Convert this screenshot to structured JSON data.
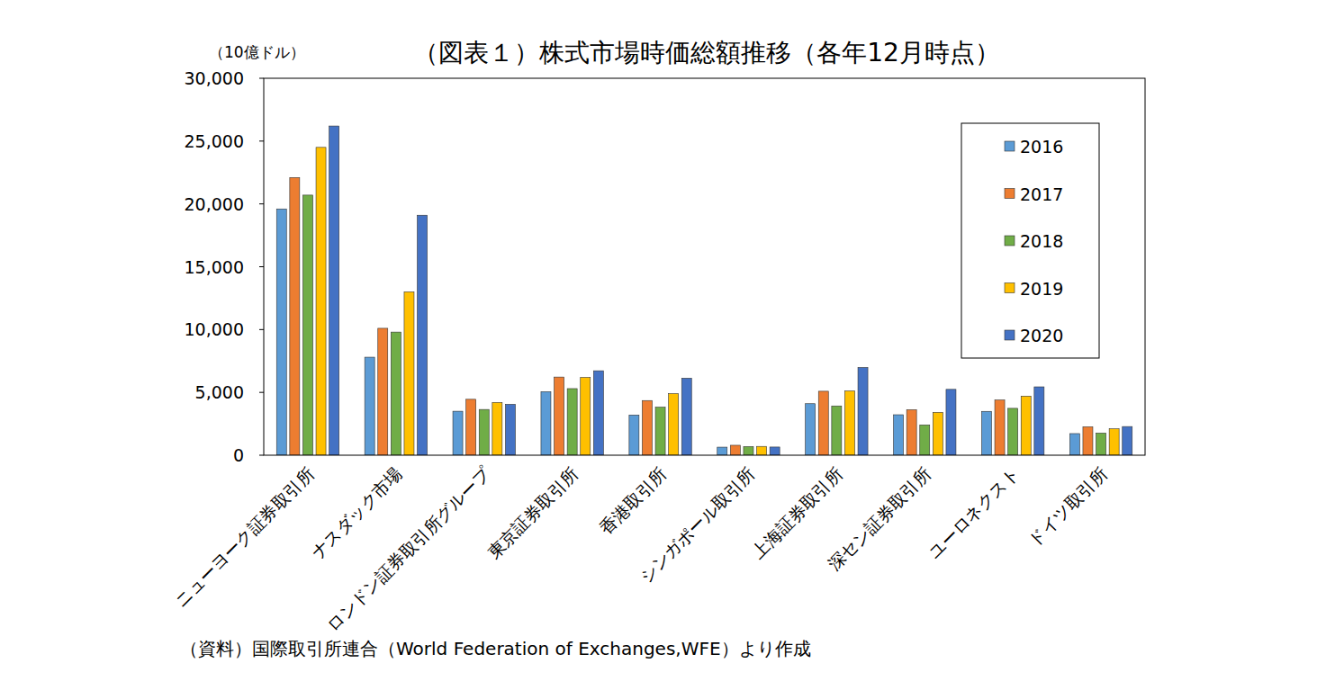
{
  "chart_data": {
    "type": "bar",
    "title": "（図表１）株式市場時価総額推移（各年12月時点）",
    "y_label": "（10億ドル）",
    "source": "（資料）国際取引所連合（World Federation of Exchanges,WFE）より作成",
    "categories": [
      "ニューヨーク証券取引所",
      "ナスダック市場",
      "ロンドン証券取引所グループ",
      "東京証券取引所",
      "香港取引所",
      "シンガポール取引所",
      "上海証券取引所",
      "深セン証券取引所",
      "ユーロネクスト",
      "ドイツ取引所"
    ],
    "series": [
      {
        "name": "2016",
        "color": "#5b9bd5",
        "values": [
          19600,
          7800,
          3500,
          5060,
          3200,
          640,
          4100,
          3220,
          3490,
          1720
        ]
      },
      {
        "name": "2017",
        "color": "#ed7d31",
        "values": [
          22100,
          10100,
          4450,
          6220,
          4350,
          790,
          5090,
          3620,
          4390,
          2260
        ]
      },
      {
        "name": "2018",
        "color": "#70ad47",
        "values": [
          20700,
          9800,
          3640,
          5300,
          3820,
          690,
          3920,
          2410,
          3730,
          1760
        ]
      },
      {
        "name": "2019",
        "color": "#ffc000",
        "values": [
          24500,
          13000,
          4200,
          6190,
          4900,
          700,
          5110,
          3410,
          4700,
          2100
        ]
      },
      {
        "name": "2020",
        "color": "#4472c4",
        "values": [
          26200,
          19100,
          4050,
          6720,
          6130,
          650,
          6980,
          5240,
          5440,
          2280
        ]
      }
    ],
    "ylim": [
      0,
      30000
    ],
    "yticks": [
      0,
      {
        "value": 5000,
        "label": "5,000"
      },
      {
        "value": 10000,
        "label": "10,000"
      },
      {
        "value": 15000,
        "label": "15,000"
      },
      {
        "value": 20000,
        "label": "20,000"
      },
      {
        "value": 25000,
        "label": "25,000"
      },
      {
        "value": 30000,
        "label": "30,000"
      }
    ],
    "grid": false,
    "legend": "upper right"
  }
}
